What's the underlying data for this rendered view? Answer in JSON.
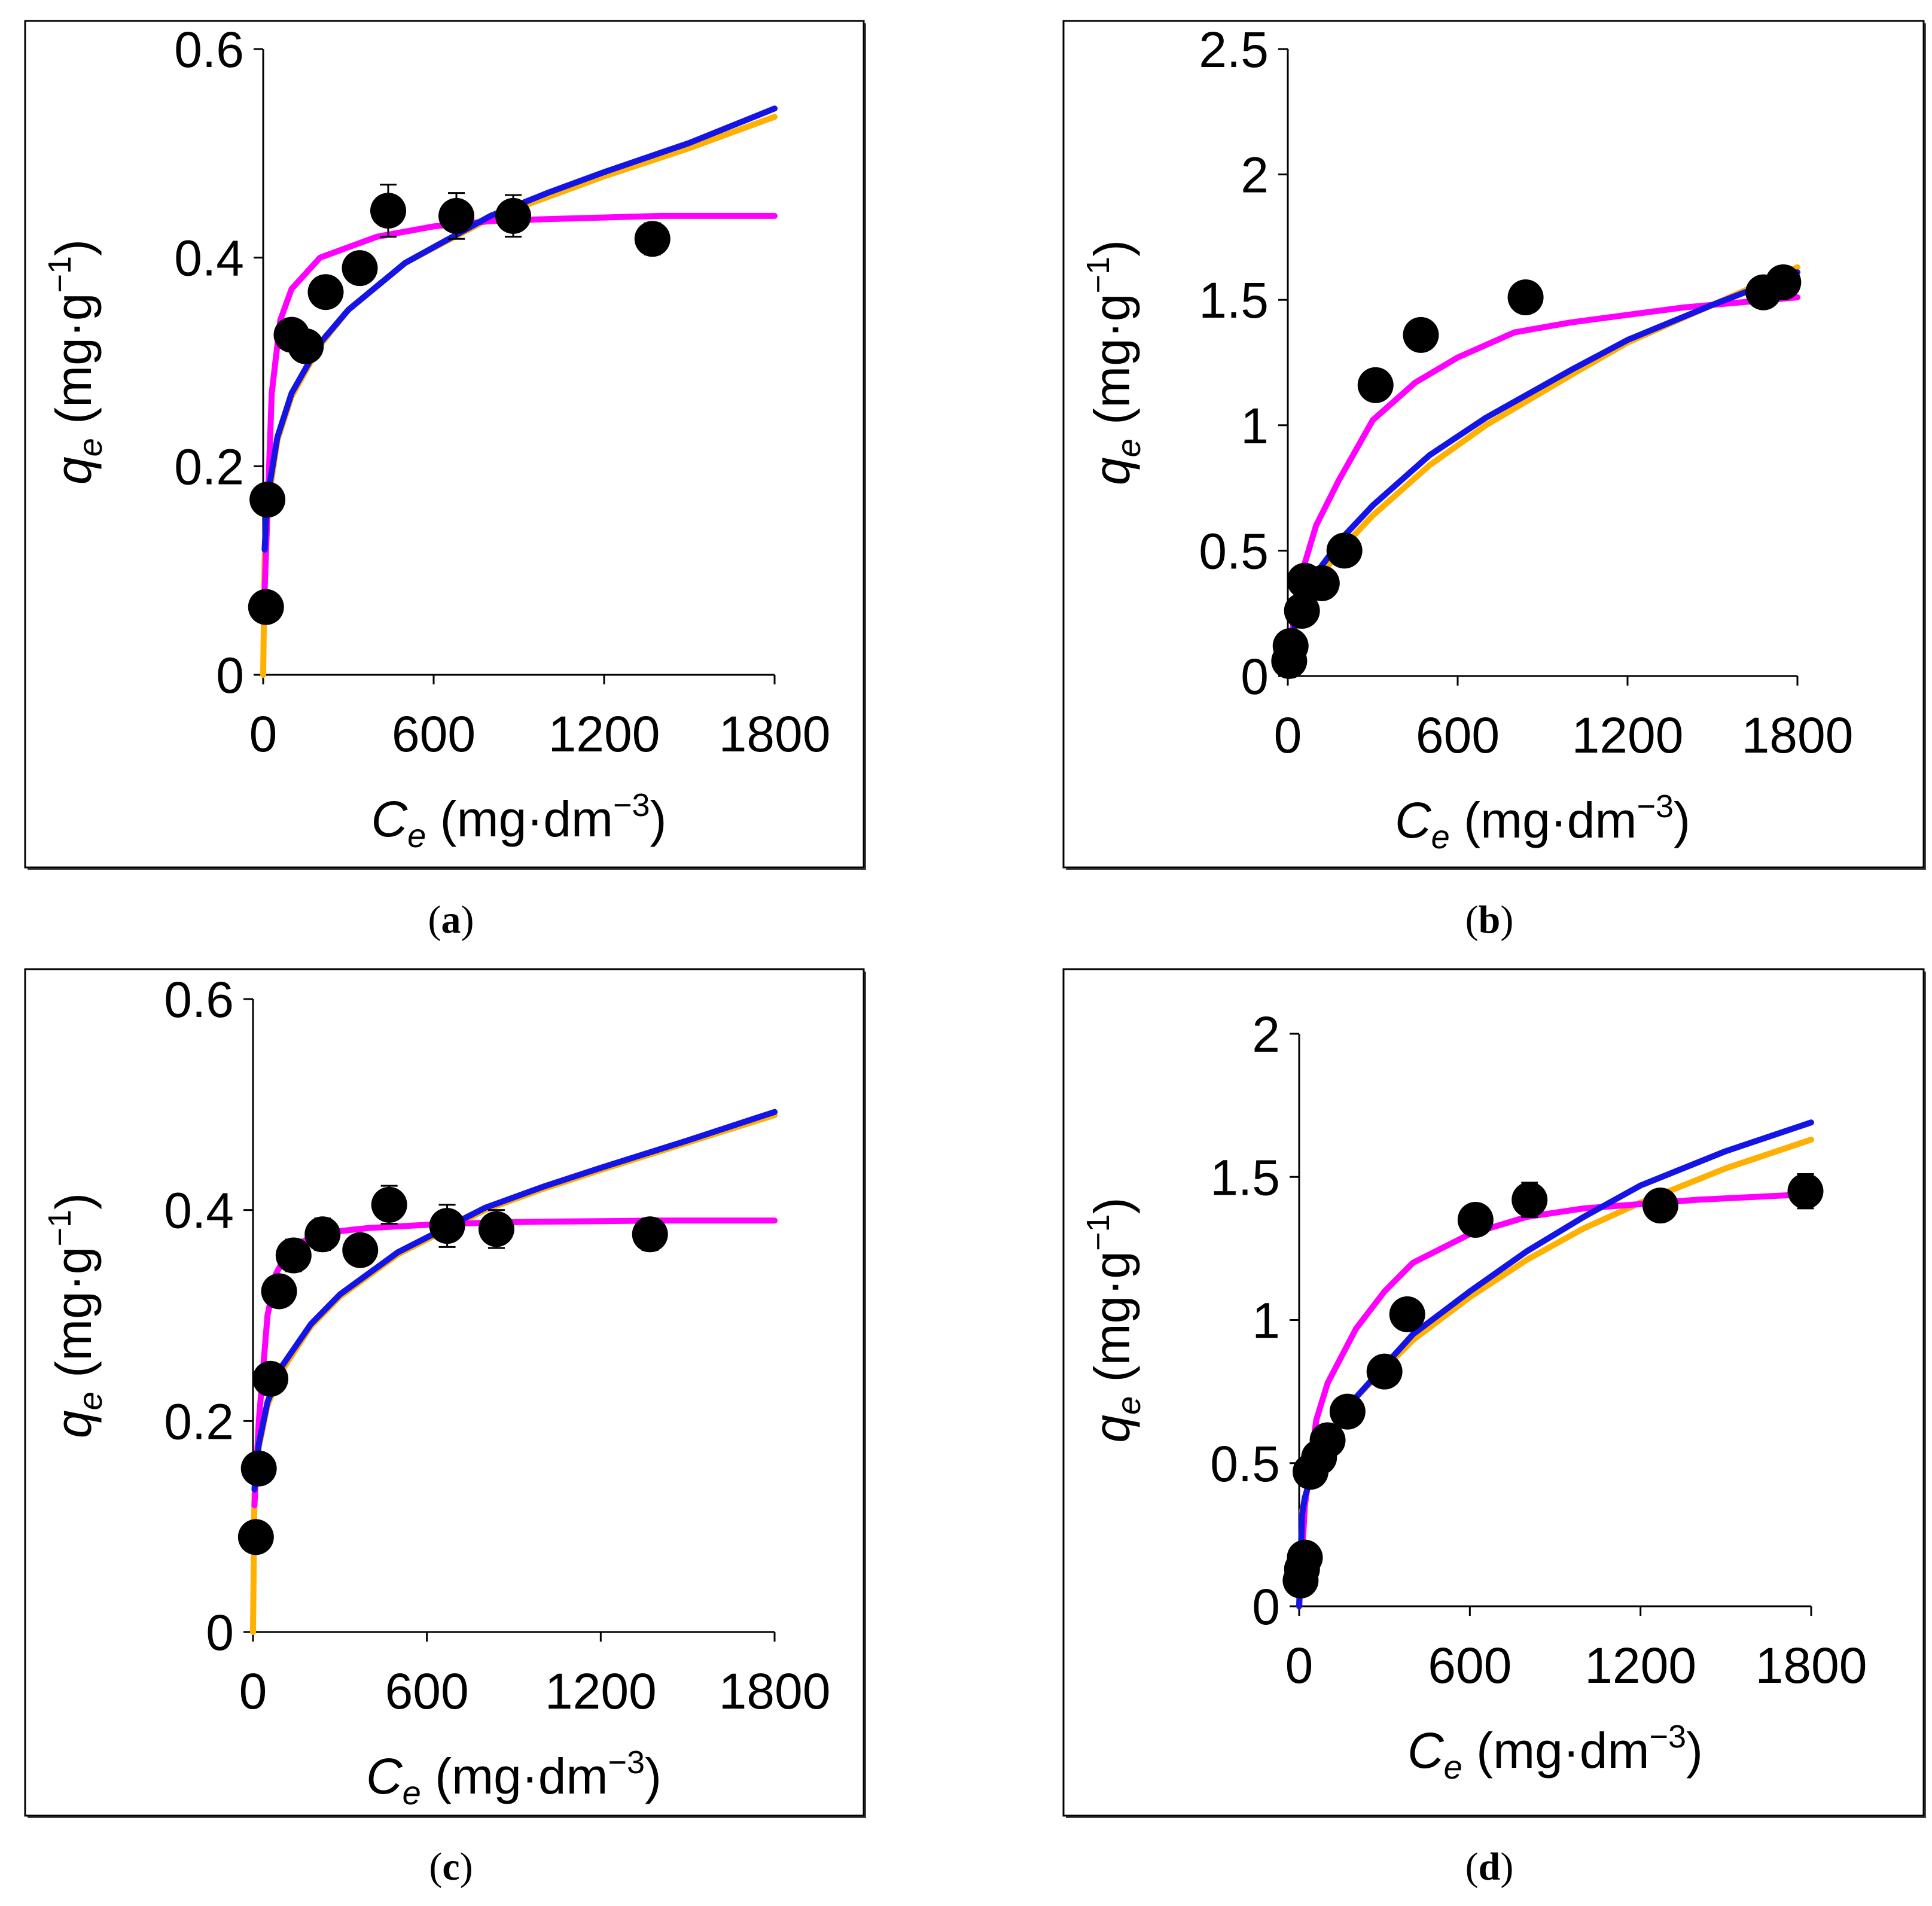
{
  "figure": {
    "colors": {
      "langmuir": "#ff00ff",
      "freundlich": "#ffb000",
      "third_model": "#1414e6",
      "points": "#000000",
      "axis": "#000000",
      "frame": "#000000"
    }
  },
  "chart_data": [
    {
      "panel": "a",
      "caption": "a",
      "type": "scatter",
      "xlabel_main": "C",
      "xlabel_sub": "e",
      "xlabel_unit": "(mg·dm",
      "xlabel_exp": "−3",
      "ylabel_main": "q",
      "ylabel_sub": "e",
      "ylabel_unit": "(mg·g",
      "ylabel_exp": "−1",
      "xlim": [
        0,
        1800
      ],
      "ylim": [
        0,
        0.6
      ],
      "x_ticks": [
        0,
        600,
        1200,
        1800
      ],
      "y_ticks": [
        0,
        0.2,
        0.4,
        0.6
      ],
      "x_tick_labels": [
        "0",
        "600",
        "1200",
        "1800"
      ],
      "y_tick_labels": [
        "0",
        "0.2",
        "0.4",
        "0.6"
      ],
      "points": {
        "x": [
          10,
          15,
          100,
          150,
          220,
          340,
          440,
          680,
          880,
          1370
        ],
        "y": [
          0.065,
          0.168,
          0.326,
          0.315,
          0.367,
          0.39,
          0.445,
          0.44,
          0.44,
          0.418
        ],
        "err": [
          0,
          0,
          0.012,
          0.012,
          0.012,
          0.012,
          0.025,
          0.022,
          0.02,
          0.015
        ]
      },
      "series": [
        {
          "name": "langmuir",
          "x": [
            5,
            30,
            60,
            100,
            150,
            200,
            300,
            400,
            600,
            800,
            1000,
            1400,
            1800
          ],
          "y": [
            0.08,
            0.27,
            0.34,
            0.37,
            0.385,
            0.4,
            0.41,
            0.42,
            0.43,
            0.435,
            0.437,
            0.44,
            0.44
          ]
        },
        {
          "name": "freundlich",
          "x": [
            0,
            5,
            10,
            20,
            50,
            100,
            200,
            300,
            500,
            800,
            1000,
            1200,
            1500,
            1800
          ],
          "y": [
            0,
            0.11,
            0.14,
            0.17,
            0.225,
            0.267,
            0.316,
            0.35,
            0.395,
            0.438,
            0.458,
            0.478,
            0.505,
            0.535
          ]
        },
        {
          "name": "third_model",
          "x": [
            5,
            10,
            20,
            50,
            100,
            200,
            300,
            500,
            800,
            1000,
            1200,
            1500,
            1800
          ],
          "y": [
            0.12,
            0.148,
            0.178,
            0.228,
            0.27,
            0.318,
            0.35,
            0.395,
            0.44,
            0.462,
            0.482,
            0.51,
            0.543
          ]
        }
      ]
    },
    {
      "panel": "b",
      "caption": "b",
      "type": "scatter",
      "xlabel_main": "C",
      "xlabel_sub": "e",
      "xlabel_unit": "(mg·dm",
      "xlabel_exp": "−3",
      "ylabel_main": "q",
      "ylabel_sub": "e",
      "ylabel_unit": "(mg·g",
      "ylabel_exp": "−1",
      "xlim": [
        0,
        1800
      ],
      "ylim": [
        0,
        2.5
      ],
      "x_ticks": [
        0,
        600,
        1200,
        1800
      ],
      "y_ticks": [
        0,
        0.5,
        1,
        1.5,
        2,
        2.5
      ],
      "x_tick_labels": [
        "0",
        "600",
        "1200",
        "1800"
      ],
      "y_tick_labels": [
        "0",
        "0.5",
        "1",
        "1.5",
        "2",
        "2.5"
      ],
      "points": {
        "x": [
          5,
          10,
          50,
          60,
          120,
          200,
          310,
          470,
          840,
          1680,
          1750
        ],
        "y": [
          0.06,
          0.12,
          0.26,
          0.38,
          0.37,
          0.5,
          1.16,
          1.36,
          1.51,
          1.53,
          1.57
        ],
        "err": [
          0,
          0,
          0,
          0,
          0,
          0,
          0.04,
          0.05,
          0.06,
          0.04,
          0.04
        ]
      },
      "series": [
        {
          "name": "langmuir",
          "x": [
            0,
            20,
            60,
            100,
            180,
            300,
            450,
            600,
            800,
            1000,
            1400,
            1800
          ],
          "y": [
            0,
            0.22,
            0.45,
            0.6,
            0.78,
            1.02,
            1.17,
            1.27,
            1.37,
            1.41,
            1.47,
            1.51
          ]
        },
        {
          "name": "freundlich",
          "x": [
            0,
            10,
            50,
            100,
            200,
            300,
            500,
            700,
            1000,
            1200,
            1500,
            1800
          ],
          "y": [
            0,
            0.12,
            0.27,
            0.38,
            0.52,
            0.64,
            0.84,
            1.0,
            1.2,
            1.33,
            1.48,
            1.63
          ]
        },
        {
          "name": "third_model",
          "x": [
            0,
            10,
            50,
            100,
            200,
            300,
            500,
            700,
            1000,
            1200,
            1500,
            1800
          ],
          "y": [
            0,
            0.14,
            0.3,
            0.41,
            0.56,
            0.68,
            0.88,
            1.03,
            1.22,
            1.34,
            1.48,
            1.61
          ]
        }
      ]
    },
    {
      "panel": "c",
      "caption": "c",
      "type": "scatter",
      "xlabel_main": "C",
      "xlabel_sub": "e",
      "xlabel_unit": "(mg·dm",
      "xlabel_exp": "−3",
      "ylabel_main": "q",
      "ylabel_sub": "e",
      "ylabel_unit": "(mg·g",
      "ylabel_exp": "−1",
      "xlim": [
        0,
        1800
      ],
      "ylim": [
        0,
        0.6
      ],
      "x_ticks": [
        0,
        600,
        1200,
        1800
      ],
      "y_ticks": [
        0,
        0.2,
        0.4,
        0.6
      ],
      "x_tick_labels": [
        "0",
        "600",
        "1200",
        "1800"
      ],
      "y_tick_labels": [
        "0",
        "0.2",
        "0.4",
        "0.6"
      ],
      "points": {
        "x": [
          10,
          20,
          60,
          90,
          140,
          240,
          370,
          470,
          670,
          840,
          1370
        ],
        "y": [
          0.09,
          0.155,
          0.24,
          0.323,
          0.357,
          0.377,
          0.362,
          0.405,
          0.385,
          0.382,
          0.377
        ],
        "err": [
          0,
          0,
          0.012,
          0.012,
          0.015,
          0.015,
          0.012,
          0.018,
          0.02,
          0.018,
          0.015
        ]
      },
      "series": [
        {
          "name": "langmuir",
          "x": [
            5,
            20,
            50,
            80,
            120,
            200,
            300,
            400,
            600,
            800,
            1000,
            1400,
            1800
          ],
          "y": [
            0.12,
            0.2,
            0.3,
            0.34,
            0.36,
            0.375,
            0.38,
            0.383,
            0.386,
            0.388,
            0.389,
            0.39,
            0.39
          ]
        },
        {
          "name": "freundlich",
          "x": [
            0,
            5,
            10,
            20,
            50,
            100,
            200,
            300,
            500,
            800,
            1000,
            1200,
            1500,
            1800
          ],
          "y": [
            0,
            0.13,
            0.15,
            0.175,
            0.215,
            0.248,
            0.29,
            0.318,
            0.358,
            0.4,
            0.42,
            0.438,
            0.464,
            0.49
          ]
        },
        {
          "name": "third_model",
          "x": [
            5,
            10,
            20,
            50,
            100,
            200,
            300,
            500,
            800,
            1000,
            1200,
            1500,
            1800
          ],
          "y": [
            0.135,
            0.155,
            0.178,
            0.218,
            0.252,
            0.292,
            0.32,
            0.36,
            0.402,
            0.422,
            0.44,
            0.466,
            0.493
          ]
        }
      ]
    },
    {
      "panel": "d",
      "caption": "d",
      "type": "scatter",
      "xlabel_main": "C",
      "xlabel_sub": "e",
      "xlabel_unit": "(mg·dm",
      "xlabel_exp": "−3",
      "ylabel_main": "q",
      "ylabel_sub": "e",
      "ylabel_unit": "(mg·g",
      "ylabel_exp": "−1",
      "xlim": [
        0,
        1800
      ],
      "ylim": [
        0,
        2
      ],
      "x_ticks": [
        0,
        600,
        1200,
        1800
      ],
      "y_ticks": [
        0,
        0.5,
        1,
        1.5,
        2
      ],
      "x_tick_labels": [
        "0",
        "600",
        "1200",
        "1800"
      ],
      "y_tick_labels": [
        "0",
        "0.5",
        "1",
        "1.5",
        "2"
      ],
      "points": {
        "x": [
          5,
          10,
          20,
          40,
          70,
          100,
          170,
          300,
          380,
          620,
          810,
          1270,
          1780
        ],
        "y": [
          0.09,
          0.13,
          0.17,
          0.47,
          0.52,
          0.58,
          0.68,
          0.82,
          1.02,
          1.35,
          1.42,
          1.4,
          1.45
        ],
        "err": [
          0,
          0,
          0,
          0,
          0,
          0,
          0,
          0.03,
          0.03,
          0.05,
          0.06,
          0.05,
          0.06
        ]
      },
      "series": [
        {
          "name": "langmuir",
          "x": [
            0,
            20,
            60,
            100,
            200,
            300,
            400,
            600,
            800,
            1000,
            1400,
            1800
          ],
          "y": [
            0,
            0.35,
            0.65,
            0.78,
            0.97,
            1.1,
            1.2,
            1.3,
            1.36,
            1.39,
            1.42,
            1.44
          ]
        },
        {
          "name": "freundlich",
          "x": [
            0,
            10,
            20,
            50,
            100,
            200,
            400,
            600,
            800,
            1000,
            1200,
            1500,
            1800
          ],
          "y": [
            0,
            0.33,
            0.38,
            0.48,
            0.58,
            0.73,
            0.93,
            1.08,
            1.21,
            1.32,
            1.41,
            1.53,
            1.63
          ]
        },
        {
          "name": "third_model",
          "x": [
            0,
            10,
            20,
            50,
            100,
            200,
            400,
            600,
            800,
            1000,
            1200,
            1500,
            1800
          ],
          "y": [
            0,
            0.32,
            0.38,
            0.48,
            0.58,
            0.73,
            0.95,
            1.1,
            1.24,
            1.36,
            1.47,
            1.59,
            1.69
          ]
        }
      ]
    }
  ]
}
